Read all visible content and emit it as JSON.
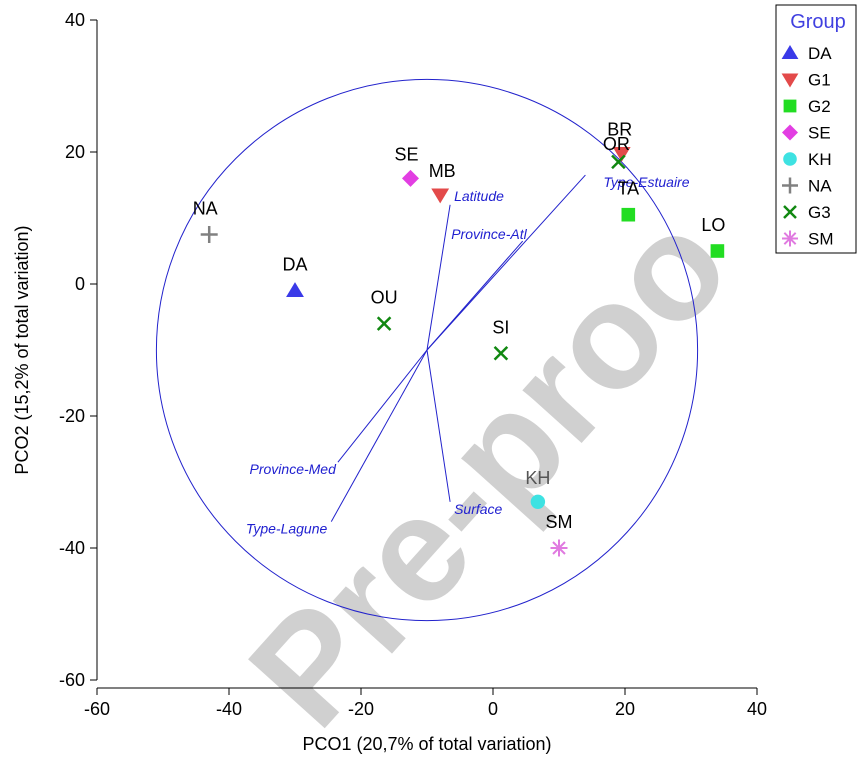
{
  "chart_data": {
    "type": "scatter",
    "xlabel": "PCO1 (20,7% of total variation)",
    "ylabel": "PCO2 (15,2% of total variation)",
    "xlim": [
      -60,
      40
    ],
    "ylim": [
      -60,
      40
    ],
    "xticks": [
      "-60",
      "-40",
      "-20",
      "0",
      "20",
      "40"
    ],
    "yticks": [
      "-60",
      "-40",
      "-20",
      "0",
      "20",
      "40"
    ],
    "grid": false,
    "legend": {
      "title": "Group",
      "placement": "top-right",
      "entries": [
        {
          "name": "DA",
          "marker": "triangle-up",
          "color": "#3a3ae8"
        },
        {
          "name": "G1",
          "marker": "triangle-down",
          "color": "#e34a4a"
        },
        {
          "name": "G2",
          "marker": "square",
          "color": "#22dd22"
        },
        {
          "name": "SE",
          "marker": "diamond",
          "color": "#e23ee2"
        },
        {
          "name": "KH",
          "marker": "circle",
          "color": "#3ee2e2"
        },
        {
          "name": "NA",
          "marker": "plus",
          "color": "#808080"
        },
        {
          "name": "G3",
          "marker": "cross",
          "color": "#118811"
        },
        {
          "name": "SM",
          "marker": "asterisk",
          "color": "#e07ae0"
        }
      ]
    },
    "points": [
      {
        "label": "NA",
        "group": "NA",
        "x": -43,
        "y": 7.5
      },
      {
        "label": "DA",
        "group": "DA",
        "x": -30,
        "y": -1
      },
      {
        "label": "SE",
        "group": "SE",
        "x": -12.5,
        "y": 16
      },
      {
        "label": "MB",
        "group": "G1",
        "x": -8,
        "y": 13.5
      },
      {
        "label": "OU",
        "group": "G3",
        "x": -16.5,
        "y": -6
      },
      {
        "label": "SI",
        "group": "G3",
        "x": 1.2,
        "y": -10.5
      },
      {
        "label": "BR",
        "group": "G1",
        "x": 19.5,
        "y": 19.8
      },
      {
        "label": "OR",
        "group": "G3",
        "x": 19,
        "y": 18.5
      },
      {
        "label": "TA",
        "group": "G2",
        "x": 20.5,
        "y": 10.5
      },
      {
        "label": "LO",
        "group": "G2",
        "x": 34,
        "y": 5
      },
      {
        "label": "KH",
        "group": "KH",
        "x": 6.8,
        "y": -33
      },
      {
        "label": "SM",
        "group": "SM",
        "x": 10,
        "y": -40
      }
    ],
    "circle": {
      "center": [
        -10,
        -10
      ],
      "radius": 41
    },
    "vectors": [
      {
        "label": "Type-Estuaire",
        "x": 14,
        "y": 16.5
      },
      {
        "label": "Latitude",
        "x": -6.5,
        "y": 12
      },
      {
        "label": "Province-Atl",
        "x": 4.5,
        "y": 6.5
      },
      {
        "label": "Province-Med",
        "x": -23.5,
        "y": -27
      },
      {
        "label": "Type-Lagune",
        "x": -24.5,
        "y": -36
      },
      {
        "label": "Surface",
        "x": -6.5,
        "y": -33
      }
    ]
  },
  "watermark": "Pre-proo"
}
